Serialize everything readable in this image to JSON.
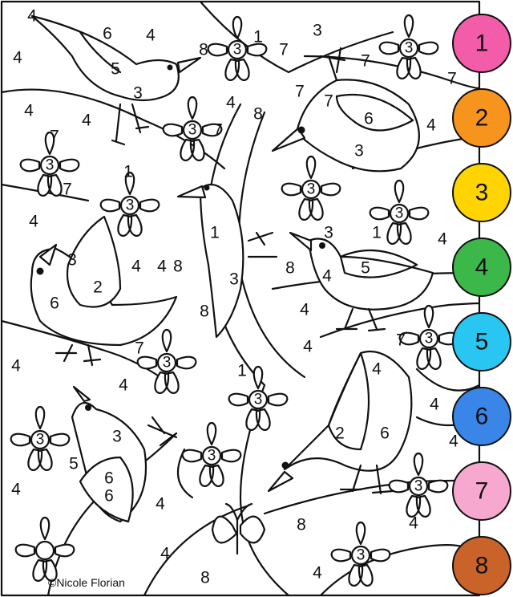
{
  "copyright": "©Nicole Florian",
  "palette": [
    {
      "label": "1",
      "color": "#f25ca8"
    },
    {
      "label": "2",
      "color": "#f7941d"
    },
    {
      "label": "3",
      "color": "#ffd400"
    },
    {
      "label": "4",
      "color": "#3cb84a"
    },
    {
      "label": "5",
      "color": "#29c6f2"
    },
    {
      "label": "6",
      "color": "#3a86e8"
    },
    {
      "label": "7",
      "color": "#f7a8cf"
    },
    {
      "label": "8",
      "color": "#c9632a"
    }
  ],
  "region_numbers": [
    "4",
    "6",
    "4",
    "4",
    "5",
    "3",
    "4",
    "4",
    "7",
    "7",
    "1",
    "4",
    "3",
    "8",
    "4",
    "2",
    "6",
    "8",
    "6",
    "4",
    "8",
    "4",
    "3",
    "1",
    "4",
    "4",
    "8",
    "4",
    "4",
    "1",
    "4",
    "3",
    "5",
    "6",
    "4",
    "2",
    "6",
    "4",
    "4",
    "4",
    "4",
    "8",
    "4",
    "4",
    "8",
    "4",
    "4",
    "8",
    "1",
    "1",
    "3",
    "6",
    "4",
    "5",
    "3",
    "3",
    "7",
    "7",
    "7",
    "7",
    "7",
    "7",
    "7",
    "7"
  ],
  "circled_numbers": [
    "3",
    "3",
    "3",
    "3",
    "3",
    "3",
    "3",
    "3",
    "3",
    "3",
    "3",
    "3",
    "3",
    "3"
  ]
}
